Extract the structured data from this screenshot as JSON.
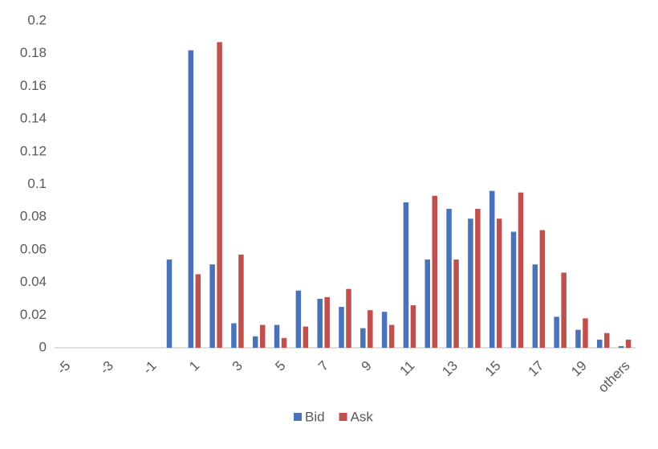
{
  "chart_data": {
    "type": "bar",
    "categories": [
      "-5",
      null,
      "-3",
      null,
      "-1",
      null,
      "1",
      null,
      "3",
      null,
      "5",
      null,
      "7",
      null,
      "9",
      null,
      "11",
      null,
      "13",
      null,
      "15",
      null,
      "17",
      null,
      "19",
      null,
      "others"
    ],
    "series": [
      {
        "name": "Bid",
        "color": "#4a72b8",
        "values": [
          0,
          0,
          0,
          0,
          0,
          0.054,
          0.182,
          0.051,
          0.015,
          0.007,
          0.014,
          0.035,
          0.03,
          0.025,
          0.012,
          0.022,
          0.089,
          0.054,
          0.085,
          0.079,
          0.096,
          0.071,
          0.051,
          0.019,
          0.011,
          0.005,
          0.001
        ]
      },
      {
        "name": "Ask",
        "color": "#c0504d",
        "values": [
          0,
          0,
          0,
          0,
          0,
          0,
          0.045,
          0.187,
          0.057,
          0.014,
          0.006,
          0.013,
          0.031,
          0.036,
          0.023,
          0.014,
          0.026,
          0.093,
          0.054,
          0.085,
          0.079,
          0.095,
          0.072,
          0.046,
          0.018,
          0.009,
          0.005
        ]
      }
    ],
    "ylim": [
      0,
      0.2
    ],
    "yticks": [
      0,
      0.02,
      0.04,
      0.06,
      0.08,
      0.1,
      0.12,
      0.14,
      0.16,
      0.18,
      0.2
    ],
    "grid": false,
    "legend": "bottom"
  }
}
